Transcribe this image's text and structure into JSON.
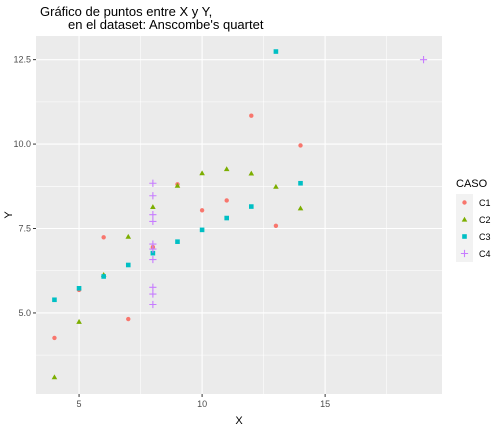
{
  "chart_data": {
    "type": "scatter",
    "title": "Gráfico de puntos entre X y Y,",
    "subtitle": "en el dataset: Anscombe's quartet",
    "xlabel": "X",
    "ylabel": "Y",
    "xlim": [
      3.25,
      19.75
    ],
    "ylim": [
      2.6,
      13.2
    ],
    "x_ticks": [
      5,
      10,
      15
    ],
    "y_ticks": [
      5.0,
      7.5,
      10.0,
      12.5
    ],
    "x_tick_labels": [
      "5",
      "10",
      "15"
    ],
    "y_tick_labels": [
      "5.0",
      "7.5",
      "10.0",
      "12.5"
    ],
    "grid": true,
    "legend": {
      "title": "CASO",
      "position": "right"
    },
    "series": [
      {
        "name": "C1",
        "color": "#F8766D",
        "shape": "circle",
        "x": [
          10,
          8,
          13,
          9,
          11,
          14,
          6,
          4,
          12,
          7,
          5
        ],
        "y": [
          8.04,
          6.95,
          7.58,
          8.81,
          8.33,
          9.96,
          7.24,
          4.26,
          10.84,
          4.82,
          5.68
        ]
      },
      {
        "name": "C2",
        "color": "#7CAE00",
        "shape": "triangle",
        "x": [
          10,
          8,
          13,
          9,
          11,
          14,
          6,
          4,
          12,
          7,
          5
        ],
        "y": [
          9.14,
          8.14,
          8.74,
          8.77,
          9.26,
          8.1,
          6.13,
          3.1,
          9.13,
          7.26,
          4.74
        ]
      },
      {
        "name": "C3",
        "color": "#00BFC4",
        "shape": "square",
        "x": [
          10,
          8,
          13,
          9,
          11,
          14,
          6,
          4,
          12,
          7,
          5
        ],
        "y": [
          7.46,
          6.77,
          12.74,
          7.11,
          7.81,
          8.84,
          6.08,
          5.39,
          8.15,
          6.42,
          5.73
        ]
      },
      {
        "name": "C4",
        "color": "#C77CFF",
        "shape": "plus",
        "x": [
          8,
          8,
          8,
          8,
          8,
          8,
          8,
          19,
          8,
          8,
          8
        ],
        "y": [
          6.58,
          5.76,
          7.71,
          8.84,
          8.47,
          7.04,
          5.25,
          12.5,
          5.56,
          7.91,
          6.89
        ]
      }
    ]
  }
}
